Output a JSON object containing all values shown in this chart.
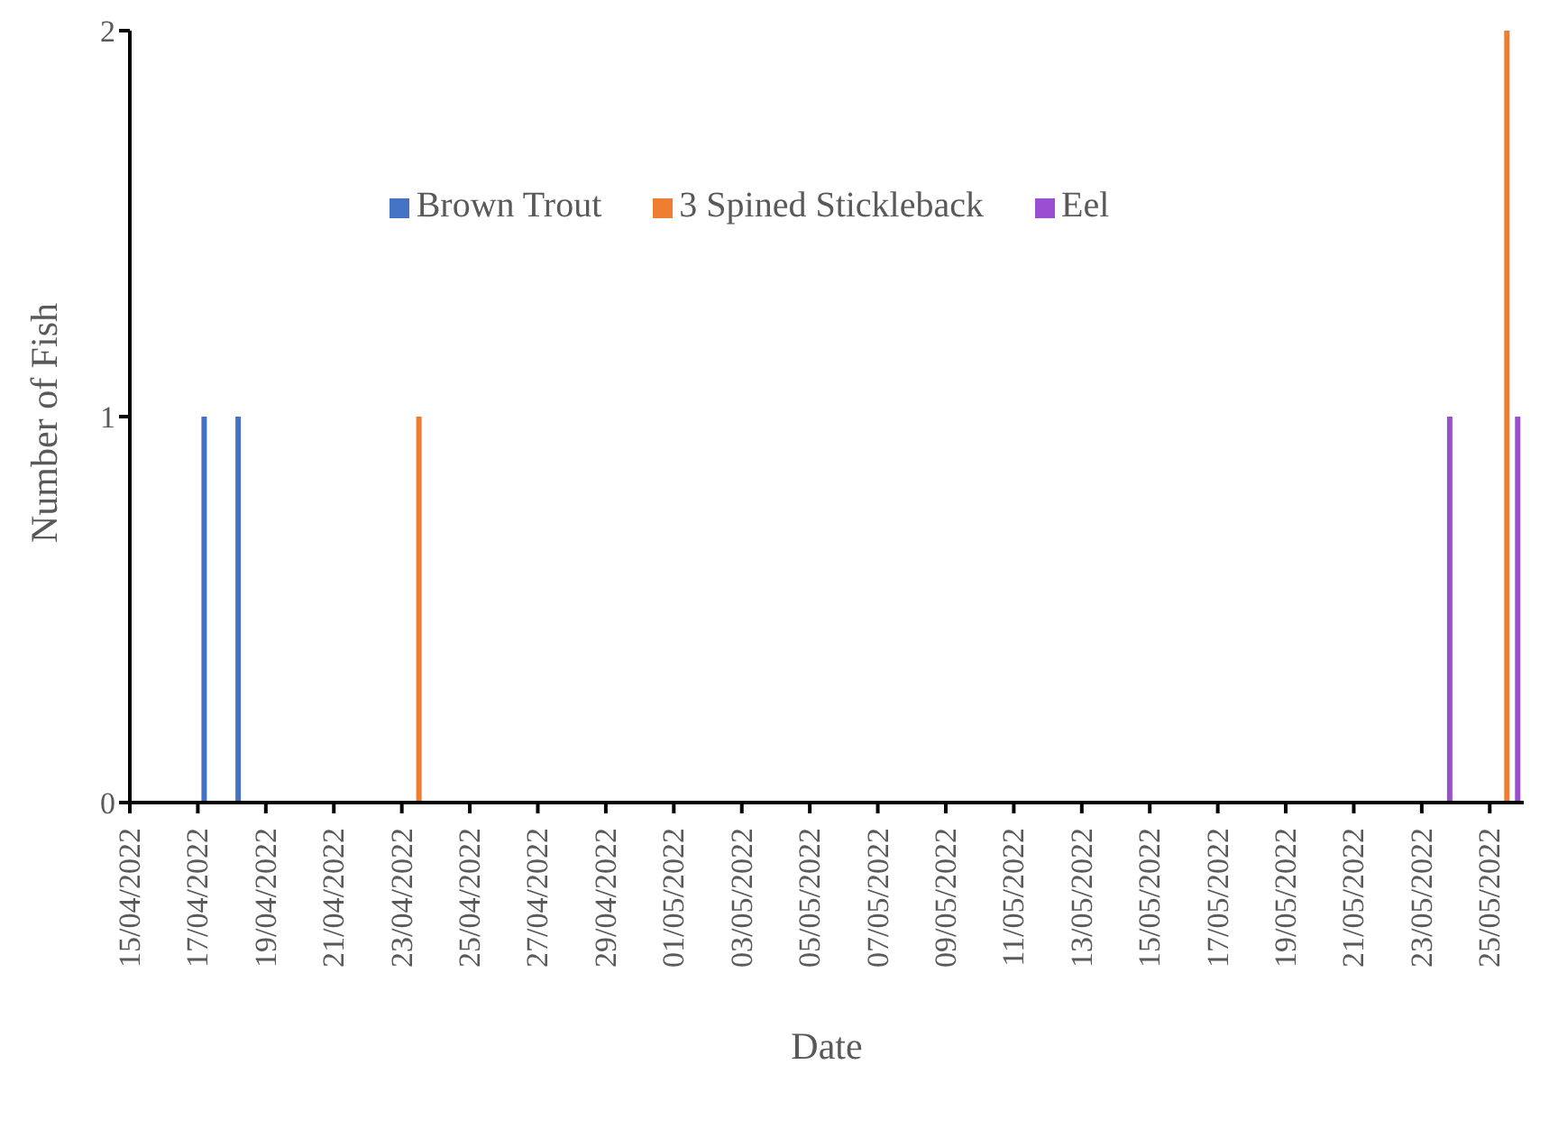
{
  "chart_data": {
    "type": "bar",
    "xlabel": "Date",
    "ylabel": "Number of Fish",
    "series": [
      {
        "name": "Brown Trout",
        "color": "#4472c4",
        "x": [
          "2022-04-17",
          "2022-04-18"
        ],
        "values": [
          1,
          1
        ]
      },
      {
        "name": "3 Spined Stickleback",
        "color": "#ed7d31",
        "x": [
          "2022-04-23",
          "2022-05-25"
        ],
        "values": [
          1,
          2
        ]
      },
      {
        "name": "Eel",
        "color": "#9a4fd0",
        "x": [
          "2022-05-23",
          "2022-05-25"
        ],
        "values": [
          1,
          1
        ]
      }
    ],
    "xlim": [
      "2022-04-15",
      "2022-05-26"
    ],
    "xticks": [
      {
        "value": "2022-04-15",
        "label": "15/04/2022"
      },
      {
        "value": "2022-04-17",
        "label": "17/04/2022"
      },
      {
        "value": "2022-04-19",
        "label": "19/04/2022"
      },
      {
        "value": "2022-04-21",
        "label": "21/04/2022"
      },
      {
        "value": "2022-04-23",
        "label": "23/04/2022"
      },
      {
        "value": "2022-04-25",
        "label": "25/04/2022"
      },
      {
        "value": "2022-04-27",
        "label": "27/04/2022"
      },
      {
        "value": "2022-04-29",
        "label": "29/04/2022"
      },
      {
        "value": "2022-05-01",
        "label": "01/05/2022"
      },
      {
        "value": "2022-05-03",
        "label": "03/05/2022"
      },
      {
        "value": "2022-05-05",
        "label": "05/05/2022"
      },
      {
        "value": "2022-05-07",
        "label": "07/05/2022"
      },
      {
        "value": "2022-05-09",
        "label": "09/05/2022"
      },
      {
        "value": "2022-05-11",
        "label": "11/05/2022"
      },
      {
        "value": "2022-05-13",
        "label": "13/05/2022"
      },
      {
        "value": "2022-05-15",
        "label": "15/05/2022"
      },
      {
        "value": "2022-05-17",
        "label": "17/05/2022"
      },
      {
        "value": "2022-05-19",
        "label": "19/05/2022"
      },
      {
        "value": "2022-05-21",
        "label": "21/05/2022"
      },
      {
        "value": "2022-05-23",
        "label": "23/05/2022"
      },
      {
        "value": "2022-05-25",
        "label": "25/05/2022"
      }
    ],
    "ylim": [
      0,
      2
    ],
    "yticks": [
      0,
      1,
      2
    ],
    "grid": false,
    "legend": "top"
  }
}
